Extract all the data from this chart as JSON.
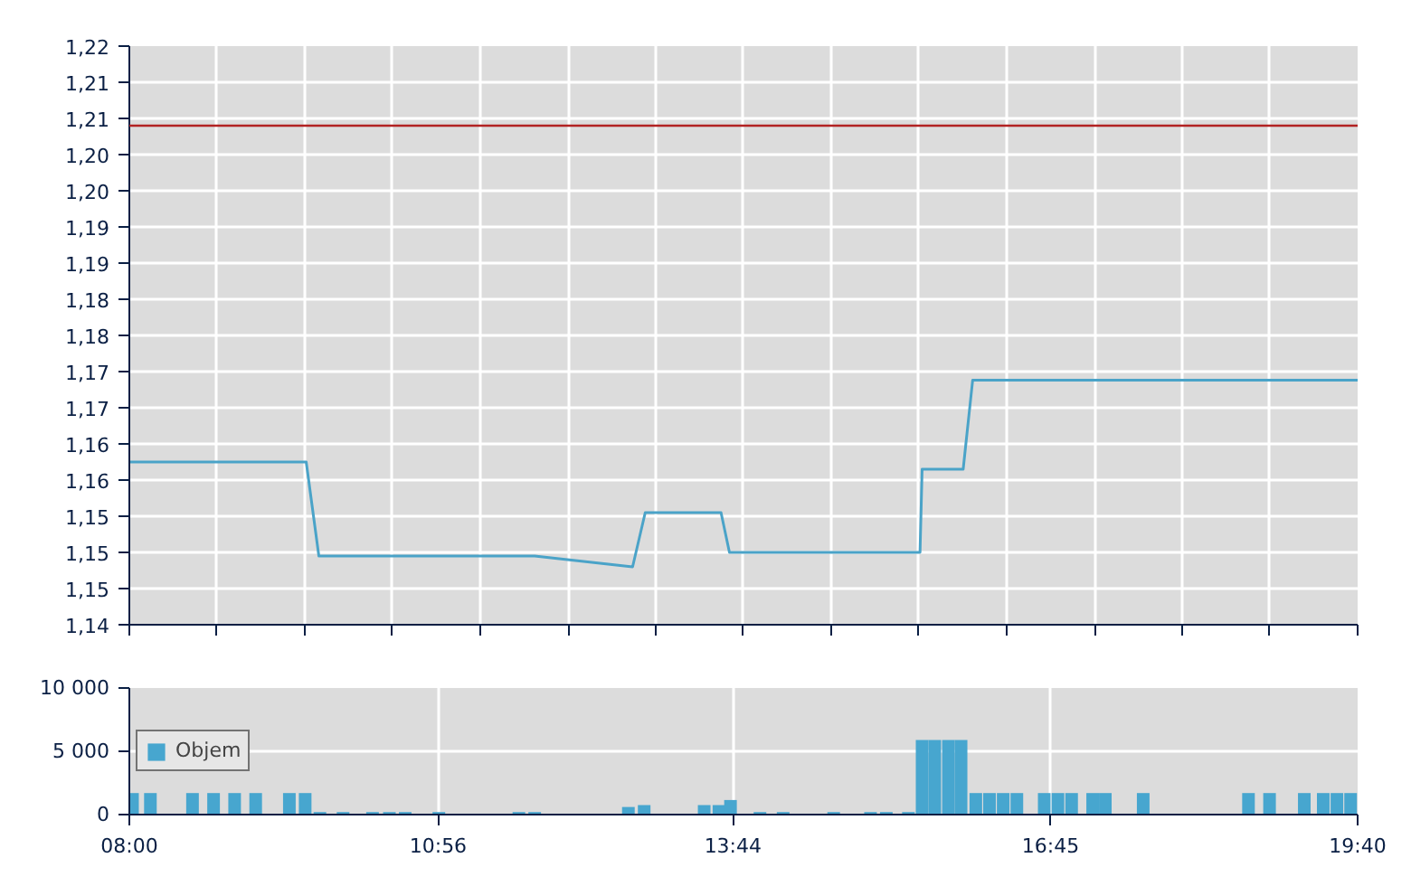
{
  "chart_data": [
    {
      "type": "line",
      "x": [
        8.0,
        9.68,
        9.8,
        11.85,
        12.78,
        12.9,
        13.62,
        13.7,
        15.51,
        15.53,
        15.92,
        16.01,
        19.6667
      ],
      "series": [
        {
          "color": "#4aa3c8",
          "values": [
            1.1625,
            1.1625,
            1.1495,
            1.1495,
            1.148,
            1.1555,
            1.1555,
            1.15,
            1.15,
            1.1615,
            1.1615,
            1.1738,
            1.1738
          ]
        }
      ],
      "xlim": [
        8.0,
        19.6667
      ],
      "xticks": [
        {
          "value": 8.0,
          "label": null
        },
        {
          "value": 8.8333,
          "label": null
        },
        {
          "value": 9.6667,
          "label": null
        },
        {
          "value": 10.5,
          "label": null
        },
        {
          "value": 11.3333,
          "label": null
        },
        {
          "value": 12.1667,
          "label": null
        },
        {
          "value": 13.0,
          "label": null
        },
        {
          "value": 13.8333,
          "label": null
        },
        {
          "value": 14.6667,
          "label": null
        },
        {
          "value": 15.5,
          "label": null
        },
        {
          "value": 16.3333,
          "label": null
        },
        {
          "value": 17.1667,
          "label": null
        },
        {
          "value": 18.0,
          "label": null
        },
        {
          "value": 18.8333,
          "label": null
        },
        {
          "value": 19.6667,
          "label": null
        }
      ],
      "ylim": [
        1.14,
        1.22
      ],
      "yticks": [
        {
          "value": 1.14,
          "label": "1,14"
        },
        {
          "value": 1.145,
          "label": "1,15"
        },
        {
          "value": 1.15,
          "label": "1,15"
        },
        {
          "value": 1.155,
          "label": "1,15"
        },
        {
          "value": 1.16,
          "label": "1,16"
        },
        {
          "value": 1.165,
          "label": "1,16"
        },
        {
          "value": 1.17,
          "label": "1,17"
        },
        {
          "value": 1.175,
          "label": "1,17"
        },
        {
          "value": 1.18,
          "label": "1,18"
        },
        {
          "value": 1.185,
          "label": "1,18"
        },
        {
          "value": 1.19,
          "label": "1,19"
        },
        {
          "value": 1.195,
          "label": "1,19"
        },
        {
          "value": 1.2,
          "label": "1,20"
        },
        {
          "value": 1.205,
          "label": "1,20"
        },
        {
          "value": 1.21,
          "label": "1,21"
        },
        {
          "value": 1.215,
          "label": "1,21"
        },
        {
          "value": 1.22,
          "label": "1,22"
        }
      ],
      "ref_lines": [
        {
          "axis": "y",
          "value": 1.209,
          "color": "#b22222"
        }
      ],
      "grid": true,
      "tick_labels": "y",
      "marker": "none",
      "line_style": "solid"
    },
    {
      "type": "bar",
      "x": [
        8.03,
        8.2,
        8.6,
        8.8,
        9.0,
        9.2,
        9.52,
        9.67,
        9.81,
        10.03,
        10.31,
        10.47,
        10.62,
        10.94,
        11.7,
        11.85,
        12.74,
        12.89,
        13.46,
        13.6,
        13.71,
        13.99,
        14.21,
        14.69,
        15.04,
        15.19,
        15.4,
        15.53,
        15.65,
        15.78,
        15.9,
        16.04,
        16.17,
        16.3,
        16.43,
        16.69,
        16.82,
        16.95,
        17.15,
        17.27,
        17.63,
        18.63,
        18.83,
        19.16,
        19.34,
        19.47,
        19.6
      ],
      "series": [
        {
          "name": "Objem",
          "color": "#47a6cf",
          "values": [
            1700,
            1700,
            1700,
            1700,
            1700,
            1700,
            1700,
            1700,
            200,
            200,
            200,
            200,
            200,
            200,
            200,
            200,
            600,
            750,
            750,
            750,
            1150,
            200,
            200,
            200,
            200,
            200,
            200,
            5900,
            5900,
            5900,
            5900,
            1700,
            1700,
            1700,
            1700,
            1700,
            1700,
            1700,
            1700,
            1700,
            1700,
            1700,
            1700,
            1700,
            1700,
            1700,
            1700
          ]
        }
      ],
      "xlim": [
        8.0,
        19.6667
      ],
      "xticks": [
        {
          "value": 8.0,
          "label": "08:00"
        },
        {
          "value": 10.9333,
          "label": "10:56"
        },
        {
          "value": 13.7333,
          "label": "13:44"
        },
        {
          "value": 16.75,
          "label": "16:45"
        },
        {
          "value": 19.6667,
          "label": "19:40"
        }
      ],
      "ylim": [
        0,
        10000
      ],
      "yticks": [
        {
          "value": 0,
          "label": "0"
        },
        {
          "value": 5000,
          "label": "5 000"
        },
        {
          "value": 10000,
          "label": "10 000"
        }
      ],
      "grid": true,
      "legend": "left"
    }
  ]
}
